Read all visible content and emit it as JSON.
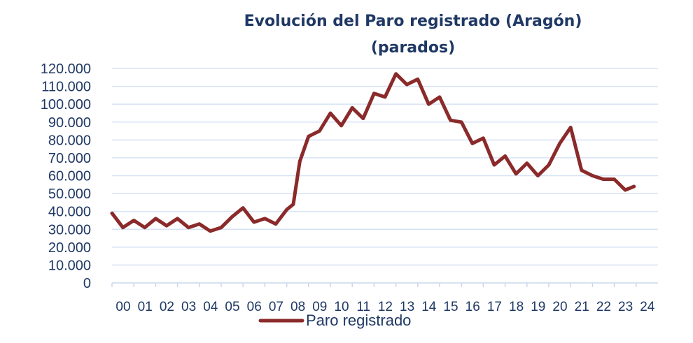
{
  "chart_data": {
    "type": "line",
    "title": "Evolución del Paro registrado (Aragón)",
    "subtitle": "(parados)",
    "xlabel": "",
    "ylabel": "",
    "ylim": [
      0,
      120000
    ],
    "y_ticks": [
      "120.000",
      "110.000",
      "100.000",
      "90.000",
      "80.000",
      "70.000",
      "60.000",
      "50.000",
      "40.000",
      "30.000",
      "20.000",
      "10.000",
      "0"
    ],
    "y_tick_values": [
      120000,
      110000,
      100000,
      90000,
      80000,
      70000,
      60000,
      50000,
      40000,
      30000,
      20000,
      10000,
      0
    ],
    "categories": [
      "00",
      "01",
      "02",
      "03",
      "04",
      "05",
      "06",
      "07",
      "08",
      "09",
      "10",
      "11",
      "12",
      "13",
      "14",
      "15",
      "16",
      "17",
      "18",
      "19",
      "20",
      "21",
      "22",
      "23",
      "24"
    ],
    "grid": true,
    "legend": "bottom",
    "series": [
      {
        "name": "Paro registrado",
        "color": "#8b2a2a",
        "x": [
          2000.0,
          2000.5,
          2001.0,
          2001.5,
          2002.0,
          2002.5,
          2003.0,
          2003.5,
          2004.0,
          2004.5,
          2005.0,
          2005.5,
          2006.0,
          2006.5,
          2007.0,
          2007.5,
          2008.0,
          2008.3,
          2008.6,
          2009.0,
          2009.5,
          2010.0,
          2010.5,
          2011.0,
          2011.5,
          2012.0,
          2012.5,
          2013.0,
          2013.5,
          2014.0,
          2014.5,
          2015.0,
          2015.5,
          2016.0,
          2016.5,
          2017.0,
          2017.5,
          2018.0,
          2018.5,
          2019.0,
          2019.5,
          2020.0,
          2020.5,
          2021.0,
          2021.5,
          2022.0,
          2022.5,
          2023.0,
          2023.5,
          2023.9
        ],
        "y": [
          39000,
          31000,
          35000,
          31000,
          36000,
          32000,
          36000,
          31000,
          33000,
          29000,
          31000,
          37000,
          42000,
          34000,
          36000,
          33000,
          41000,
          44000,
          68000,
          82000,
          85000,
          95000,
          88000,
          98000,
          92000,
          106000,
          104000,
          117000,
          111000,
          114000,
          100000,
          104000,
          91000,
          90000,
          78000,
          81000,
          66000,
          71000,
          61000,
          67000,
          60000,
          66000,
          78000,
          87000,
          63000,
          60000,
          58000,
          58000,
          52000,
          54000
        ]
      }
    ]
  }
}
